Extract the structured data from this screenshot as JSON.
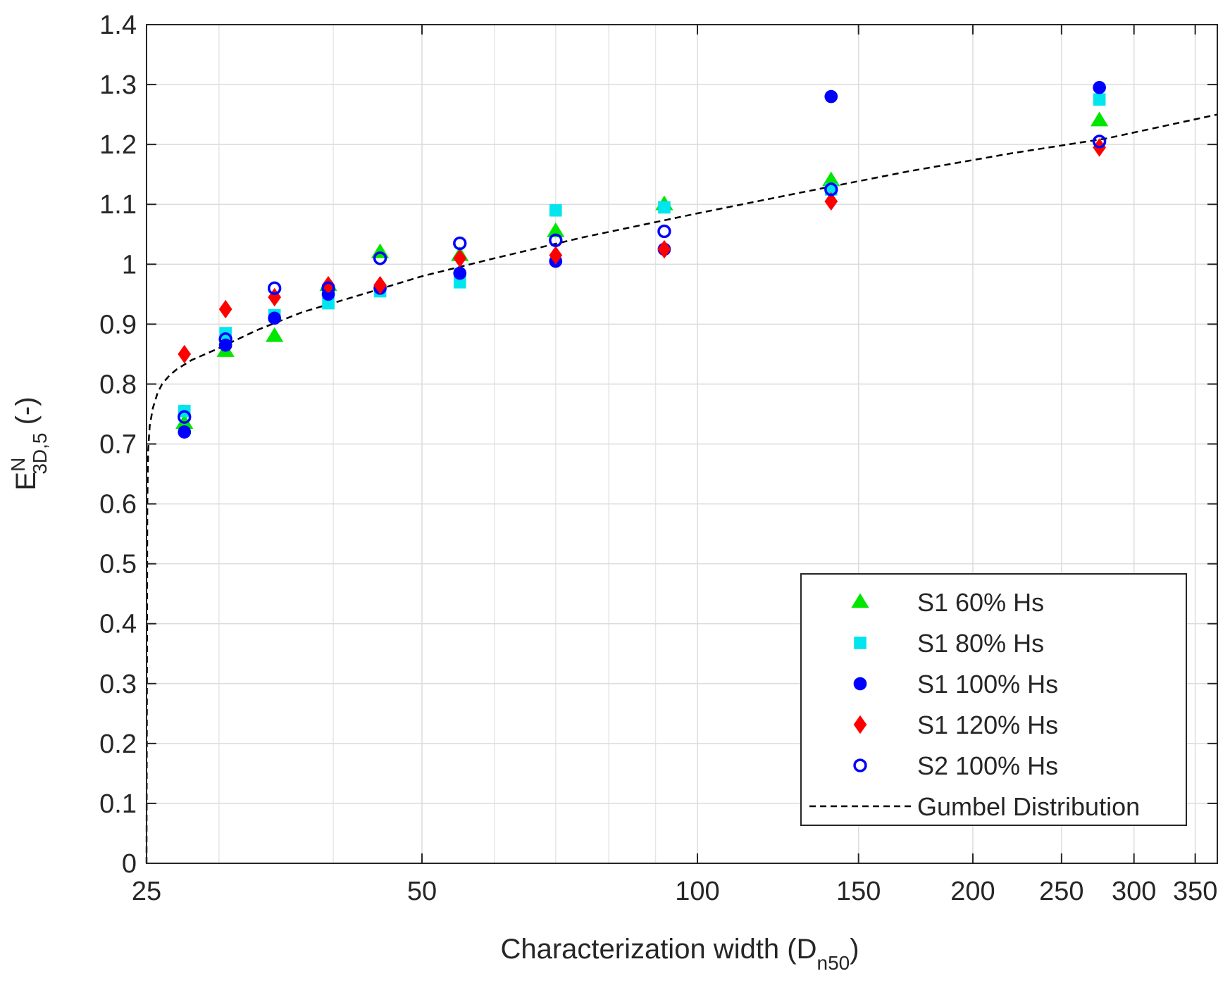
{
  "chart_data": {
    "type": "scatter",
    "x_scale": "log",
    "xlim": [
      25,
      370
    ],
    "ylim": [
      0,
      1.4
    ],
    "grid": true,
    "legend_position": "bottom-right",
    "xlabel": {
      "main": "Characterization width (D",
      "sub": "n50",
      "tail": ")"
    },
    "ylabel": {
      "base": "E",
      "sup": "N",
      "sub": "3D,5",
      "tail": " (-)"
    },
    "x_ticks": [
      25,
      50,
      100,
      150,
      200,
      250,
      300,
      350
    ],
    "x_tick_labels": [
      "25",
      "50",
      "100",
      "150",
      "200",
      "250",
      "300",
      "350"
    ],
    "y_ticks": [
      0,
      0.1,
      0.2,
      0.3,
      0.4,
      0.5,
      0.6,
      0.7,
      0.8,
      0.9,
      1.0,
      1.1,
      1.2,
      1.3,
      1.4
    ],
    "y_tick_labels": [
      "0",
      "0.1",
      "0.2",
      "0.3",
      "0.4",
      "0.5",
      "0.6",
      "0.7",
      "0.8",
      "0.9",
      "1",
      "1.1",
      "1.2",
      "1.3",
      "1.4"
    ],
    "series": [
      {
        "name": "S1 60% Hs",
        "marker": "triangle",
        "color": "#00e600",
        "x": [
          27.5,
          30.5,
          34.5,
          39.5,
          45,
          55,
          70,
          92,
          140,
          275
        ],
        "y": [
          0.735,
          0.855,
          0.88,
          0.965,
          1.02,
          1.015,
          1.055,
          1.1,
          1.14,
          1.24
        ]
      },
      {
        "name": "S1 80% Hs",
        "marker": "square",
        "color": "#00e5ee",
        "x": [
          27.5,
          30.5,
          34.5,
          39.5,
          45,
          55,
          70,
          92,
          140,
          275
        ],
        "y": [
          0.755,
          0.885,
          0.915,
          0.935,
          0.955,
          0.97,
          1.09,
          1.095,
          1.125,
          1.275
        ]
      },
      {
        "name": "S1 100% Hs",
        "marker": "filled-circle",
        "color": "#0000ff",
        "x": [
          27.5,
          30.5,
          34.5,
          39.5,
          45,
          55,
          70,
          92,
          140,
          275
        ],
        "y": [
          0.72,
          0.865,
          0.91,
          0.95,
          0.96,
          0.985,
          1.005,
          1.025,
          1.28,
          1.295
        ]
      },
      {
        "name": "S1 120% Hs",
        "marker": "diamond",
        "color": "#ff0000",
        "x": [
          27.5,
          30.5,
          34.5,
          39.5,
          45,
          55,
          70,
          92,
          140,
          275
        ],
        "y": [
          0.85,
          0.925,
          0.945,
          0.965,
          0.965,
          1.01,
          1.015,
          1.025,
          1.105,
          1.195
        ]
      },
      {
        "name": "S2 100% Hs",
        "marker": "open-circle",
        "color": "#0000ff",
        "x": [
          27.5,
          30.5,
          34.5,
          39.5,
          45,
          55,
          70,
          92,
          140,
          275
        ],
        "y": [
          0.745,
          0.875,
          0.96,
          0.96,
          1.01,
          1.035,
          1.04,
          1.055,
          1.125,
          1.205
        ]
      }
    ],
    "curve": {
      "name": "Gumbel Distribution",
      "style": "dashed",
      "color": "#000000",
      "x": [
        25,
        25.05,
        25.1,
        25.2,
        25.4,
        25.7,
        26,
        26.5,
        27,
        28,
        30,
        33,
        37,
        42,
        50,
        60,
        75,
        100,
        130,
        170,
        220,
        280,
        370
      ],
      "y": [
        0.0,
        0.6,
        0.69,
        0.73,
        0.76,
        0.785,
        0.8,
        0.815,
        0.825,
        0.84,
        0.86,
        0.89,
        0.92,
        0.945,
        0.98,
        1.01,
        1.045,
        1.085,
        1.12,
        1.155,
        1.185,
        1.21,
        1.25
      ]
    }
  }
}
